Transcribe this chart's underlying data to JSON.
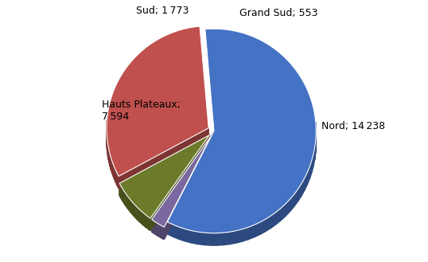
{
  "labels": [
    "Nord",
    "Grand Sud",
    "Sud",
    "Hauts Plateaux"
  ],
  "values": [
    14238,
    553,
    1773,
    7594
  ],
  "colors": [
    "#4472C4",
    "#7B68A0",
    "#6B7B2A",
    "#C0504D"
  ],
  "explode": [
    0.0,
    0.06,
    0.06,
    0.06
  ],
  "startangle": 95,
  "figsize": [
    5.38,
    3.29
  ],
  "dpi": 100,
  "background_color": "#ffffff",
  "label_fontsize": 9,
  "shadow_color": "#888888",
  "depth": 0.12
}
